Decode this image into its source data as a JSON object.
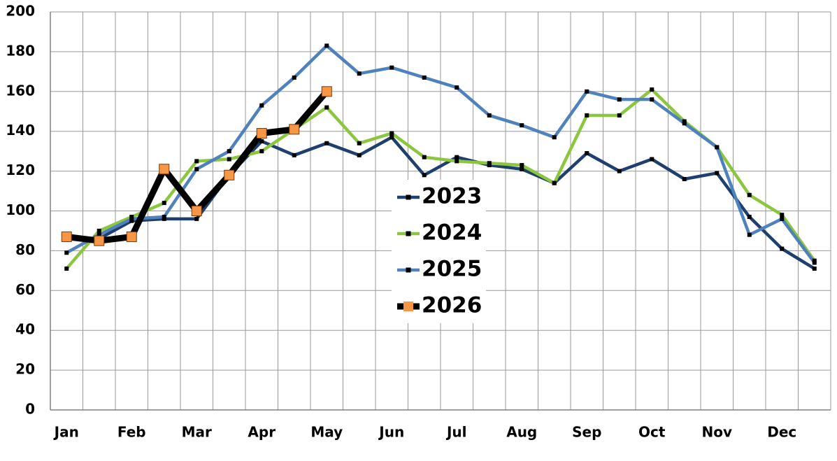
{
  "chart_data": {
    "type": "line",
    "categories": [
      "Jan",
      null,
      "Feb",
      null,
      "Mar",
      null,
      "Apr",
      null,
      "May",
      null,
      "Jun",
      null,
      "Jul",
      null,
      "Aug",
      null,
      "Sep",
      null,
      "Oct",
      null,
      "Nov",
      null,
      "Dec",
      null
    ],
    "series": [
      {
        "name": "2023",
        "color": "#1f3f6e",
        "marker_color": "#000000",
        "values": [
          87,
          86,
          95,
          96,
          96,
          118,
          135,
          128,
          134,
          128,
          137,
          118,
          127,
          123,
          121,
          114,
          129,
          120,
          126,
          116,
          119,
          97,
          81,
          71
        ]
      },
      {
        "name": "2024",
        "color": "#8cc63f",
        "marker_color": "#000000",
        "values": [
          71,
          90,
          97,
          104,
          125,
          126,
          130,
          141,
          152,
          134,
          139,
          127,
          125,
          124,
          123,
          114,
          148,
          148,
          161,
          145,
          132,
          108,
          98,
          75
        ]
      },
      {
        "name": "2025",
        "color": "#4f81bd",
        "marker_color": "#000000",
        "values": [
          79,
          88,
          96,
          97,
          121,
          130,
          153,
          167,
          183,
          169,
          172,
          167,
          162,
          148,
          143,
          137,
          160,
          156,
          156,
          144,
          132,
          88,
          96,
          74
        ]
      },
      {
        "name": "2026",
        "color": "#000000",
        "marker_color": "#f79646",
        "values": [
          87,
          85,
          87,
          121,
          100,
          118,
          139,
          141,
          160,
          null,
          null,
          null,
          null,
          null,
          null,
          null,
          null,
          null,
          null,
          null,
          null,
          null,
          null,
          null
        ]
      }
    ],
    "ylim": [
      0,
      200
    ],
    "yticks": [
      0,
      20,
      40,
      60,
      80,
      100,
      120,
      140,
      160,
      180,
      200
    ],
    "grid": true
  }
}
